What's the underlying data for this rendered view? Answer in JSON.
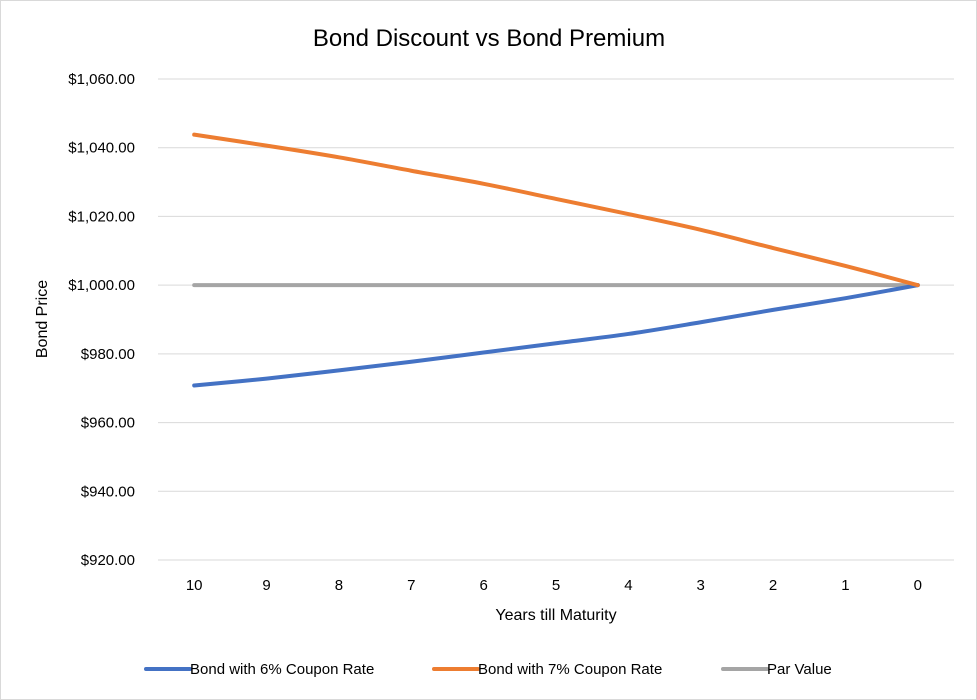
{
  "chart_data": {
    "type": "line",
    "title": "Bond Discount vs Bond Premium",
    "xlabel": "Years till Maturity",
    "ylabel": "Bond Price",
    "categories": [
      "10",
      "9",
      "8",
      "7",
      "6",
      "5",
      "4",
      "3",
      "2",
      "1",
      "0"
    ],
    "ylim": [
      920,
      1060
    ],
    "ytick_values": [
      920,
      940,
      960,
      980,
      1000,
      1020,
      1040,
      1060
    ],
    "ytick_labels": [
      "$920.00",
      "$940.00",
      "$960.00",
      "$980.00",
      "$1,000.00",
      "$1,020.00",
      "$1,040.00",
      "$1,060.00"
    ],
    "grid": true,
    "legend_position": "bottom",
    "series": [
      {
        "name": "Bond with 6% Coupon Rate",
        "color": "#4472C4",
        "values": [
          970.8,
          972.8,
          975.2,
          977.7,
          980.4,
          983.1,
          985.8,
          989.2,
          992.8,
          996.2,
          1000.0
        ]
      },
      {
        "name": "Bond with 7% Coupon Rate",
        "color": "#ED7D31",
        "values": [
          1043.8,
          1040.6,
          1037.2,
          1033.3,
          1029.5,
          1025.1,
          1020.7,
          1016.1,
          1010.8,
          1005.6,
          1000.0
        ]
      },
      {
        "name": "Par Value",
        "color": "#A5A5A5",
        "values": [
          1000,
          1000,
          1000,
          1000,
          1000,
          1000,
          1000,
          1000,
          1000,
          1000,
          1000
        ]
      }
    ]
  }
}
